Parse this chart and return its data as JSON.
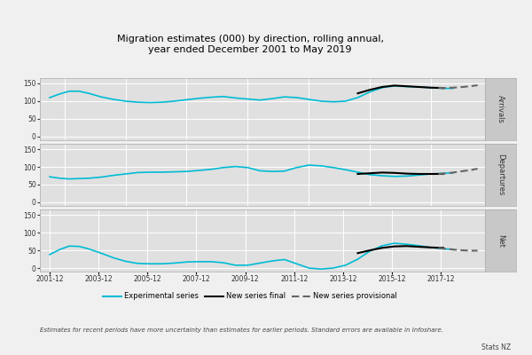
{
  "title": "Migration estimates (000) by direction, rolling annual,\nyear ended December 2001 to May 2019",
  "panels": [
    "Arrivals",
    "Departures",
    "Net"
  ],
  "fig_bg_color": "#f0f0f0",
  "plot_bg_color": "#e0e0e0",
  "strip_bg_color": "#c8c8c8",
  "experimental_color": "#00bcd4",
  "new_final_color": "#000000",
  "new_provisional_color": "#666666",
  "yticks": [
    0,
    50,
    100,
    150
  ],
  "xtick_labels": [
    "2001-12",
    "2003-12",
    "2005-12",
    "2007-12",
    "2009-12",
    "2011-12",
    "2013-12",
    "2015-12",
    "2017-12"
  ],
  "legend_items": [
    "Experimental series",
    "New series final",
    "New series provisional"
  ],
  "footnote": "Estimates for recent periods have more uncertainty than estimates for earlier periods. Standard errors are available in Infoshare.",
  "source": "Stats NZ",
  "arrivals_exp_x": [
    2001.9,
    2002.3,
    2002.7,
    2003.1,
    2003.5,
    2004.0,
    2004.5,
    2005.0,
    2005.5,
    2006.0,
    2006.5,
    2007.0,
    2007.5,
    2008.0,
    2008.5,
    2009.0,
    2009.5,
    2010.0,
    2010.5,
    2011.0,
    2011.5,
    2012.0,
    2012.5,
    2013.0,
    2013.5,
    2014.0,
    2014.5,
    2015.0,
    2015.5,
    2016.0,
    2016.5,
    2017.0,
    2017.5,
    2018.0,
    2018.4
  ],
  "arrivals_exp_y": [
    110,
    120,
    128,
    128,
    122,
    112,
    105,
    100,
    97,
    96,
    97,
    100,
    104,
    108,
    111,
    113,
    109,
    106,
    103,
    107,
    112,
    110,
    105,
    100,
    98,
    100,
    110,
    126,
    138,
    143,
    141,
    140,
    138,
    136,
    136
  ],
  "arrivals_final_x": [
    2014.5,
    2015.0,
    2015.5,
    2016.0,
    2016.5,
    2017.0,
    2017.5,
    2018.0
  ],
  "arrivals_final_y": [
    122,
    132,
    140,
    144,
    142,
    140,
    138,
    137
  ],
  "arrivals_prov_x": [
    2017.8,
    2018.0,
    2018.4,
    2018.8,
    2019.2,
    2019.4
  ],
  "arrivals_prov_y": [
    138,
    137,
    138,
    140,
    143,
    145
  ],
  "departures_exp_x": [
    2001.9,
    2002.3,
    2002.7,
    2003.1,
    2003.5,
    2004.0,
    2004.5,
    2005.0,
    2005.5,
    2006.0,
    2006.5,
    2007.0,
    2007.5,
    2008.0,
    2008.5,
    2009.0,
    2009.5,
    2010.0,
    2010.5,
    2011.0,
    2011.5,
    2012.0,
    2012.5,
    2013.0,
    2013.5,
    2014.0,
    2014.5,
    2015.0,
    2015.5,
    2016.0,
    2016.5,
    2017.0,
    2017.5,
    2018.0,
    2018.4
  ],
  "departures_exp_y": [
    72,
    68,
    66,
    67,
    68,
    71,
    76,
    80,
    84,
    85,
    85,
    86,
    87,
    90,
    93,
    98,
    101,
    98,
    89,
    87,
    88,
    98,
    105,
    103,
    98,
    92,
    85,
    78,
    75,
    73,
    74,
    77,
    80,
    82,
    83
  ],
  "departures_final_x": [
    2014.5,
    2015.0,
    2015.5,
    2016.0,
    2016.5,
    2017.0,
    2017.5,
    2018.0
  ],
  "departures_final_y": [
    80,
    82,
    84,
    83,
    81,
    80,
    80,
    80
  ],
  "departures_prov_x": [
    2017.8,
    2018.0,
    2018.4,
    2018.8,
    2019.2,
    2019.4
  ],
  "departures_prov_y": [
    80,
    81,
    84,
    88,
    92,
    95
  ],
  "net_exp_x": [
    2001.9,
    2002.3,
    2002.7,
    2003.1,
    2003.5,
    2004.0,
    2004.5,
    2005.0,
    2005.5,
    2006.0,
    2006.5,
    2007.0,
    2007.5,
    2008.0,
    2008.5,
    2009.0,
    2009.5,
    2010.0,
    2010.5,
    2011.0,
    2011.5,
    2012.0,
    2012.5,
    2013.0,
    2013.5,
    2014.0,
    2014.5,
    2015.0,
    2015.5,
    2016.0,
    2016.5,
    2017.0,
    2017.5,
    2018.0,
    2018.4
  ],
  "net_exp_y": [
    38,
    52,
    62,
    61,
    54,
    42,
    29,
    19,
    13,
    12,
    12,
    14,
    17,
    18,
    18,
    15,
    8,
    8,
    14,
    20,
    24,
    12,
    0,
    -3,
    0,
    8,
    25,
    48,
    63,
    70,
    67,
    63,
    58,
    54,
    53
  ],
  "net_final_x": [
    2014.5,
    2015.0,
    2015.5,
    2016.0,
    2016.5,
    2017.0,
    2017.5,
    2018.0
  ],
  "net_final_y": [
    42,
    50,
    57,
    61,
    62,
    60,
    58,
    57
  ],
  "net_prov_x": [
    2017.8,
    2018.0,
    2018.4,
    2018.8,
    2019.2,
    2019.4
  ],
  "net_prov_y": [
    57,
    55,
    52,
    50,
    49,
    49
  ]
}
